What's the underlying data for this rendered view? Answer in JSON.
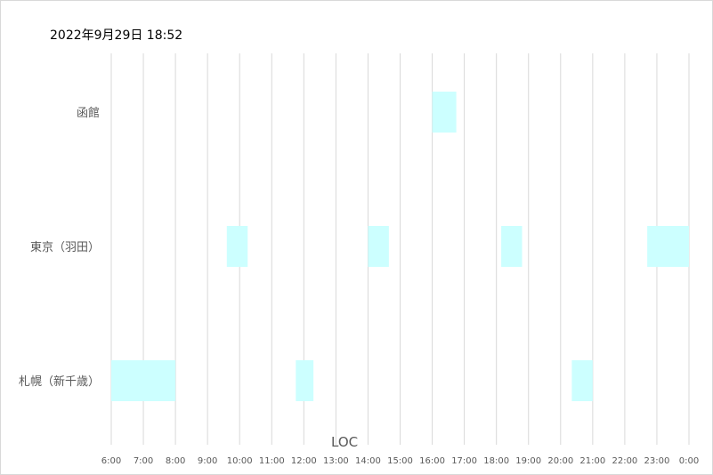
{
  "chart_data": {
    "type": "bar",
    "subtype": "gantt-horizontal",
    "title": "2022年9月29日 18:52",
    "xlabel": "LOC",
    "ylabel": "",
    "categories": [
      "函館",
      "東京（羽田）",
      "札幌（新千歳）"
    ],
    "x_ticks": [
      "6:00",
      "7:00",
      "8:00",
      "9:00",
      "10:00",
      "11:00",
      "12:00",
      "13:00",
      "14:00",
      "15:00",
      "16:00",
      "17:00",
      "18:00",
      "19:00",
      "20:00",
      "21:00",
      "22:00",
      "23:00",
      "0:00"
    ],
    "xlim_hours": [
      6,
      24
    ],
    "grid": "vertical",
    "bar_color": "#ccffff",
    "intervals": [
      {
        "category": "函館",
        "start": 16.0,
        "end": 16.75
      },
      {
        "category": "東京（羽田）",
        "start": 9.6,
        "end": 10.25
      },
      {
        "category": "東京（羽田）",
        "start": 14.0,
        "end": 14.65
      },
      {
        "category": "東京（羽田）",
        "start": 18.15,
        "end": 18.8
      },
      {
        "category": "東京（羽田）",
        "start": 22.7,
        "end": 24.0
      },
      {
        "category": "札幌（新千歳）",
        "start": 6.0,
        "end": 8.0
      },
      {
        "category": "札幌（新千歳）",
        "start": 11.75,
        "end": 12.3
      },
      {
        "category": "札幌（新千歳）",
        "start": 20.35,
        "end": 21.0
      }
    ]
  }
}
